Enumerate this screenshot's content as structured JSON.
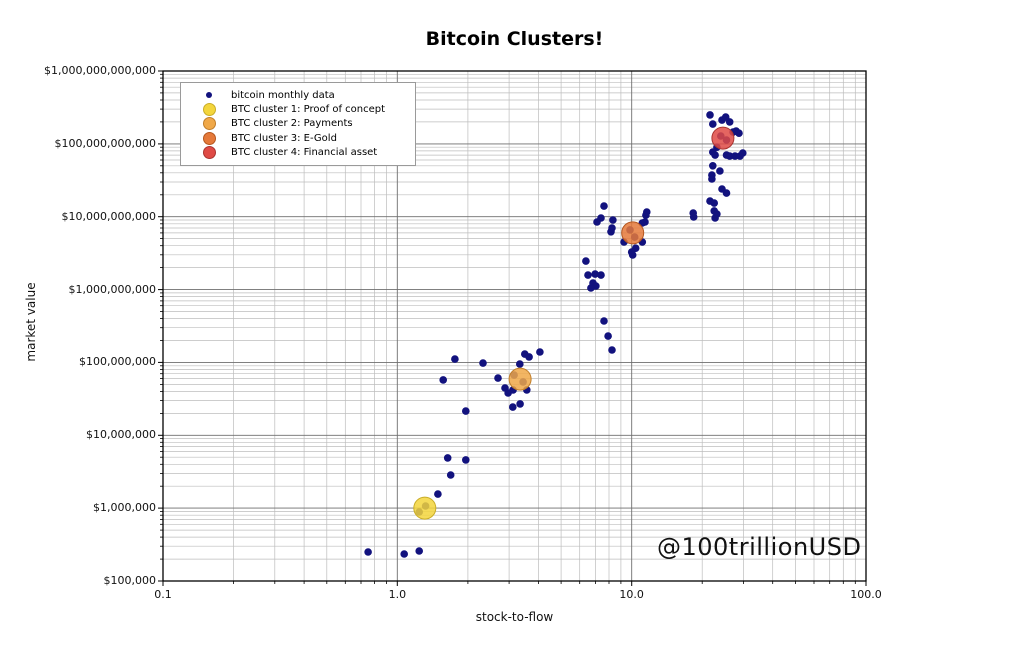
{
  "title": "Bitcoin Clusters!",
  "watermark": "@100trillionUSD",
  "axes": {
    "x_label": "stock-to-flow",
    "y_label": "market value",
    "x_ticks": [
      {
        "value": 0.1,
        "label": "0.1"
      },
      {
        "value": 1,
        "label": "1.0"
      },
      {
        "value": 10,
        "label": "10.0"
      },
      {
        "value": 100,
        "label": "100.0"
      }
    ],
    "y_ticks": [
      {
        "value": 1000000000000.0,
        "label": "$1,000,000,000,000"
      },
      {
        "value": 100000000000.0,
        "label": "$100,000,000,000"
      },
      {
        "value": 10000000000.0,
        "label": "$10,000,000,000"
      },
      {
        "value": 1000000000.0,
        "label": "$1,000,000,000"
      },
      {
        "value": 100000000.0,
        "label": "$100,000,000"
      },
      {
        "value": 10000000.0,
        "label": "$10,000,000"
      },
      {
        "value": 1000000.0,
        "label": "$1,000,000"
      },
      {
        "value": 100000.0,
        "label": "$100,000"
      }
    ]
  },
  "legend": {
    "items": [
      {
        "label": "bitcoin monthly data",
        "color": "#12127E",
        "edge": "#12127E",
        "size": "small"
      },
      {
        "label": "BTC cluster 1: Proof of concept",
        "color": "#F3D53C",
        "edge": "#C9AD28",
        "size": "large"
      },
      {
        "label": "BTC cluster 2: Payments",
        "color": "#F0A848",
        "edge": "#C07E2B",
        "size": "large"
      },
      {
        "label": "BTC cluster 3: E-Gold",
        "color": "#E5793A",
        "edge": "#B5571F",
        "size": "large"
      },
      {
        "label": "BTC cluster 4: Financial asset",
        "color": "#DF4A45",
        "edge": "#A93430",
        "size": "large"
      }
    ]
  },
  "colors": {
    "monthly_dot": "#12127E",
    "cluster1": "#F3D53C",
    "cluster2": "#F0A848",
    "cluster3": "#E5793A",
    "cluster4": "#DF4A45",
    "grid_major": "#6e6e6e",
    "grid_minor": "#bdbdbd",
    "spine": "#000000"
  },
  "chart_data": {
    "type": "scatter",
    "title": "Bitcoin Clusters!",
    "xlabel": "stock-to-flow",
    "ylabel": "market value",
    "xscale": "log",
    "yscale": "log",
    "xlim": [
      0.1,
      100
    ],
    "ylim": [
      100000.0,
      1000000000000.0
    ],
    "grid": "both",
    "legend_position": "upper-left",
    "series": [
      {
        "name": "bitcoin monthly data",
        "marker": "dot",
        "color": "#12127E",
        "radius": 3.8,
        "opacity": 1,
        "points": [
          [
            0.75,
            250000.0
          ],
          [
            1.07,
            235000.0
          ],
          [
            1.24,
            258000.0
          ],
          [
            1.49,
            1560000.0
          ],
          [
            1.64,
            4900000.0
          ],
          [
            1.96,
            4600000.0
          ],
          [
            1.69,
            2850000.0
          ],
          [
            1.24,
            885000.0
          ],
          [
            1.32,
            1070000.0
          ],
          [
            1.76,
            111000000.0
          ],
          [
            2.32,
            98000000.0
          ],
          [
            1.57,
            57500000.0
          ],
          [
            1.96,
            21500000.0
          ],
          [
            2.69,
            61000000.0
          ],
          [
            2.88,
            44600000.0
          ],
          [
            2.97,
            38000000.0
          ],
          [
            3.12,
            42000000.0
          ],
          [
            3.57,
            42000000.0
          ],
          [
            3.11,
            24400000.0
          ],
          [
            3.34,
            27000000.0
          ],
          [
            3.5,
            130000000.0
          ],
          [
            3.65,
            119000000.0
          ],
          [
            4.06,
            139000000.0
          ],
          [
            3.33,
            95000000.0
          ],
          [
            3.15,
            67000000.0
          ],
          [
            3.44,
            54000000.0
          ],
          [
            7.62,
            370000000.0
          ],
          [
            7.93,
            230000000.0
          ],
          [
            8.24,
            148000000.0
          ],
          [
            6.38,
            2460000000.0
          ],
          [
            6.51,
            1580000000.0
          ],
          [
            6.98,
            1630000000.0
          ],
          [
            7.4,
            1580000000.0
          ],
          [
            6.84,
            1230000000.0
          ],
          [
            7.04,
            1120000000.0
          ],
          [
            6.7,
            1050000000.0
          ],
          [
            7.62,
            14000000000.0
          ],
          [
            7.4,
            9600000000.0
          ],
          [
            7.11,
            8450000000.0
          ],
          [
            8.32,
            9000000000.0
          ],
          [
            8.24,
            7000000000.0
          ],
          [
            8.16,
            6200000000.0
          ],
          [
            11.6,
            11600000000.0
          ],
          [
            11.4,
            8450000000.0
          ],
          [
            9.27,
            4500000000.0
          ],
          [
            10.4,
            3700000000.0
          ],
          [
            10.0,
            3270000000.0
          ],
          [
            10.1,
            2980000000.0
          ],
          [
            11.1,
            8200000000.0
          ],
          [
            11.5,
            10500000000.0
          ],
          [
            11.1,
            4500000000.0
          ],
          [
            9.84,
            6600000000.0
          ],
          [
            10.3,
            5250000000.0
          ],
          [
            18.4,
            9900000000.0
          ],
          [
            21.6,
            250000000000.0
          ],
          [
            22.2,
            187000000000.0
          ],
          [
            24.3,
            212000000000.0
          ],
          [
            25.2,
            233000000000.0
          ],
          [
            26.2,
            200000000000.0
          ],
          [
            27.9,
            150000000000.0
          ],
          [
            28.7,
            140000000000.0
          ],
          [
            27.1,
            145000000000.0
          ],
          [
            23.1,
            90000000000.0
          ],
          [
            22.2,
            77000000000.0
          ],
          [
            22.7,
            70000000000.0
          ],
          [
            25.4,
            70000000000.0
          ],
          [
            26.2,
            68000000000.0
          ],
          [
            27.6,
            68000000000.0
          ],
          [
            29.0,
            68000000000.0
          ],
          [
            29.8,
            75000000000.0
          ],
          [
            22.2,
            50000000000.0
          ],
          [
            23.8,
            42400000000.0
          ],
          [
            22.0,
            37300000000.0
          ],
          [
            22.0,
            32900000000.0
          ],
          [
            24.3,
            24000000000.0
          ],
          [
            25.4,
            21100000000.0
          ],
          [
            21.6,
            16400000000.0
          ],
          [
            22.5,
            15400000000.0
          ],
          [
            18.3,
            11200000000.0
          ],
          [
            22.5,
            12000000000.0
          ],
          [
            23.1,
            10900000000.0
          ],
          [
            22.7,
            9600000000.0
          ],
          [
            24.0,
            128000000000.0
          ],
          [
            25.4,
            113000000000.0
          ]
        ]
      },
      {
        "name": "BTC cluster 1: Proof of concept",
        "marker": "cluster",
        "color": "#F3D53C",
        "edge": "#C9AD28",
        "radius": 11,
        "opacity": 0.85,
        "points": [
          [
            1.31,
            1000000.0
          ]
        ]
      },
      {
        "name": "BTC cluster 2: Payments",
        "marker": "cluster",
        "color": "#F0A848",
        "edge": "#C07E2B",
        "radius": 11,
        "opacity": 0.85,
        "points": [
          [
            3.34,
            59000000.0
          ]
        ]
      },
      {
        "name": "BTC cluster 3: E-Gold",
        "marker": "cluster",
        "color": "#E5793A",
        "edge": "#B5571F",
        "radius": 11,
        "opacity": 0.85,
        "points": [
          [
            10.1,
            6000000000.0
          ]
        ]
      },
      {
        "name": "BTC cluster 4: Financial asset",
        "marker": "cluster",
        "color": "#DF4A45",
        "edge": "#A93430",
        "radius": 11,
        "opacity": 0.85,
        "points": [
          [
            24.5,
            120000000000.0
          ]
        ]
      }
    ]
  }
}
